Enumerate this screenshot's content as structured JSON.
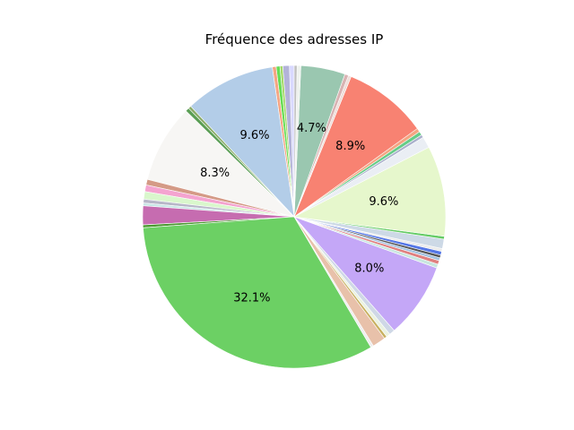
{
  "chart_data": {
    "type": "pie",
    "title": "Fréquence des adresses IP",
    "start_angle_deg": 90,
    "direction": "counterclockwise",
    "autopct_threshold": 4.5,
    "slices": [
      {
        "value": 0.5,
        "color": "#d9d9ff"
      },
      {
        "value": 0.7,
        "color": "#b3b3d9"
      },
      {
        "value": 0.3,
        "color": "#a6d96a"
      },
      {
        "value": 0.4,
        "color": "#66dd55"
      },
      {
        "value": 0.4,
        "color": "#f4a582"
      },
      {
        "value": 9.6,
        "color": "#b3cde8"
      },
      {
        "value": 0.3,
        "color": "#88aa66"
      },
      {
        "value": 0.4,
        "color": "#5b9e55"
      },
      {
        "value": 8.3,
        "color": "#f7f6f4"
      },
      {
        "value": 0.6,
        "color": "#d49a86"
      },
      {
        "value": 0.7,
        "color": "#f4a4d0"
      },
      {
        "value": 0.8,
        "color": "#d9f7cc"
      },
      {
        "value": 0.4,
        "color": "#b7b7c8"
      },
      {
        "value": 0.3,
        "color": "#c8e6e6"
      },
      {
        "value": 2.0,
        "color": "#c66cb0"
      },
      {
        "value": 0.3,
        "color": "#4d9933"
      },
      {
        "value": 32.1,
        "color": "#6cd064"
      },
      {
        "value": 0.3,
        "color": "#eeeeee"
      },
      {
        "value": 1.4,
        "color": "#e8c1aa"
      },
      {
        "value": 0.3,
        "color": "#c8b060"
      },
      {
        "value": 0.4,
        "color": "#eaf2e0"
      },
      {
        "value": 0.6,
        "color": "#cfd8e6"
      },
      {
        "value": 8.0,
        "color": "#c4a7f7"
      },
      {
        "value": 0.4,
        "color": "#c8e6e0"
      },
      {
        "value": 0.4,
        "color": "#e08080"
      },
      {
        "value": 0.3,
        "color": "#a0c0e0"
      },
      {
        "value": 0.3,
        "color": "#555555"
      },
      {
        "value": 0.4,
        "color": "#5577e6"
      },
      {
        "value": 0.3,
        "color": "#eaeaea"
      },
      {
        "value": 1.0,
        "color": "#cdd9e6"
      },
      {
        "value": 0.3,
        "color": "#66cc66"
      },
      {
        "value": 9.6,
        "color": "#e6f7cc"
      },
      {
        "value": 1.2,
        "color": "#eaeef4"
      },
      {
        "value": 0.3,
        "color": "#aab0cc"
      },
      {
        "value": 0.4,
        "color": "#66cc88"
      },
      {
        "value": 0.4,
        "color": "#f4a582"
      },
      {
        "value": 8.9,
        "color": "#f88272"
      },
      {
        "value": 0.3,
        "color": "#eeddd8"
      },
      {
        "value": 0.4,
        "color": "#d9b3b3"
      },
      {
        "value": 4.7,
        "color": "#9ac7b0"
      },
      {
        "value": 0.4,
        "color": "#eef2ee"
      },
      {
        "value": 0.3,
        "color": "#c0c0c0"
      }
    ],
    "labels_pct": [
      "9.6%",
      "8.3%",
      "32.1%",
      "8.0%",
      "9.6%",
      "8.9%",
      "4.7%"
    ]
  }
}
